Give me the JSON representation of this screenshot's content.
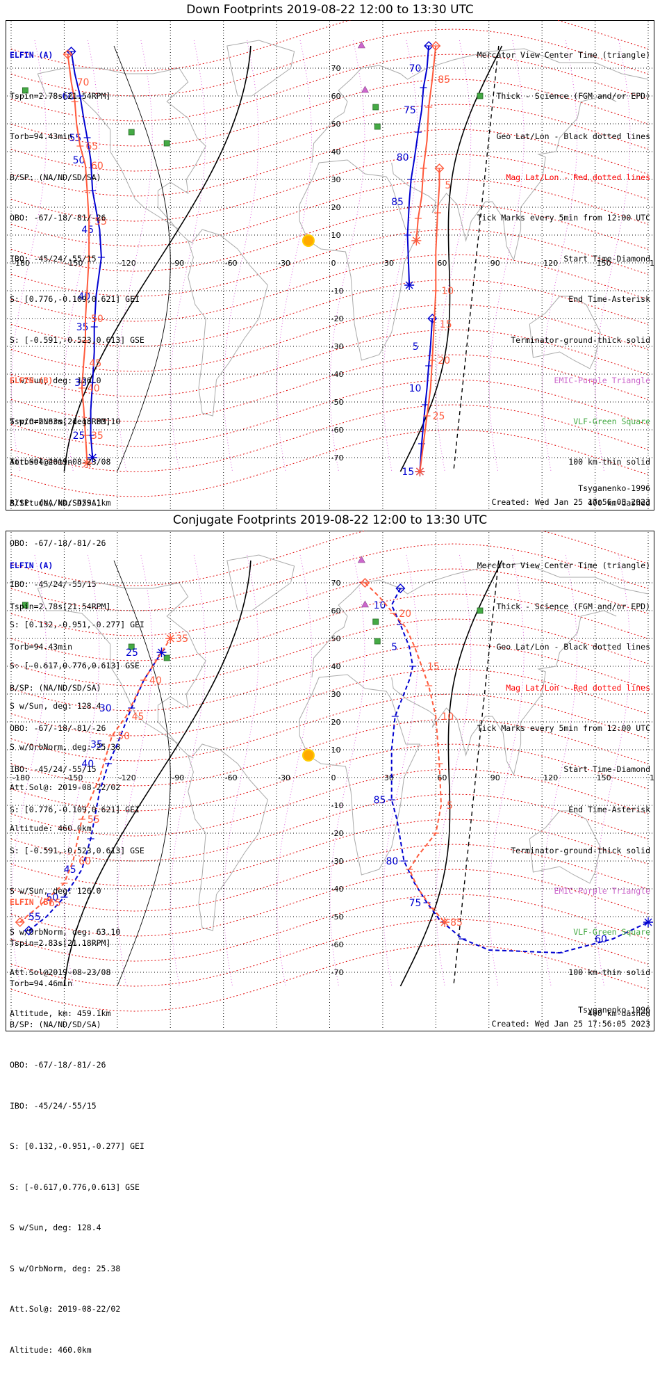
{
  "down": {
    "title": "Down Footprints 2019-08-22 12:00 to 13:30 UTC",
    "info_a": [
      "ELFIN (A)",
      "Tspin=2.78s[21.54RPM]",
      "Torb=94.43min",
      "B/SP: (NA/ND/SD/SA)",
      "OBO: -67/-18/-81/-26",
      "IBO: -45/24/-55/15",
      "S: [0.776,-0.109,0.621] GEI",
      "S: [-0.591,-0.523,0.613] GSE",
      "S w/Sun, deg: 126.0",
      "S w/OrbNorm, deg: 63.10",
      "Att.Sol@2019-08-23/08",
      "Altitude, km: 459.1km"
    ],
    "info_b": [
      "ELFIN (B)",
      "Tspin=2.83s[21.18RPM]",
      "Torb=94.46min",
      "B/SP: (NA/ND/SD/SA)",
      "OBO: -67/-18/-81/-26",
      "IBO: -45/24/-55/15",
      "S: [0.132,-0.951,-0.277] GEI",
      "S: [-0.617,0.776,0.613] GSE",
      "S w/Sun, deg: 128.4",
      "S w/OrbNorm, deg: 25.38",
      "Att.Sol@: 2019-08-22/02",
      "Altitude: 460.0km"
    ],
    "footer_left": "Tsyganenko-1996",
    "footer_right": "Created: Wed Jan 25 17:56:05 2023"
  },
  "conjugate": {
    "title": "Conjugate Footprints 2019-08-22 12:00 to 13:30 UTC",
    "info_a": [
      "ELFIN (A)",
      "Tspin=2.78s[21.54RPM]",
      "Torb=94.43min",
      "B/SP: (NA/ND/SD/SA)",
      "OBO: -67/-18/-81/-26",
      "IBO: -45/24/-55/15",
      "S: [0.776,-0.109,0.621] GEI",
      "S: [-0.591,-0.523,0.613] GSE",
      "S w/Sun, deg: 126.0",
      "S w/OrbNorm, deg: 63.10",
      "Att.Sol@2019-08-23/08",
      "Altitude, km: 459.1km"
    ],
    "info_b": [
      "ELFIN (B)",
      "Tspin=2.83s[21.18RPM]",
      "Torb=94.46min",
      "B/SP: (NA/ND/SD/SA)",
      "OBO: -67/-18/-81/-26",
      "IBO: -45/24/-55/15",
      "S: [0.132,-0.951,-0.277] GEI",
      "S: [-0.617,0.776,0.613] GSE",
      "S w/Sun, deg: 128.4",
      "S w/OrbNorm, deg: 25.38",
      "Att.Sol@: 2019-08-22/02",
      "Altitude: 460.0km"
    ],
    "footer_left": "Tsyganenko-1996",
    "footer_right": "Created: Wed Jan 25 17:56:05 2023"
  },
  "legend": [
    {
      "text": "Mercator View Center Time (triangle)",
      "color": "#000000"
    },
    {
      "text": "Thick - Science (FGM and/or EPD)",
      "color": "#000000"
    },
    {
      "text": "Geo Lat/Lon - Black dotted lines",
      "color": "#000000"
    },
    {
      "text": "Mag Lat/Lon - Red dotted lines",
      "color": "#ff0000"
    },
    {
      "text": "Tick Marks every 5min from 12:00 UTC",
      "color": "#000000"
    },
    {
      "text": "Start Time-Diamond",
      "color": "#000000"
    },
    {
      "text": "End Time-Asterisk",
      "color": "#000000"
    },
    {
      "text": "Terminator-ground-thick solid",
      "color": "#000000"
    },
    {
      "text": "EMIC-Purple Triangle",
      "color": "#cc66cc"
    },
    {
      "text": "VLF-Green Square",
      "color": "#44aa44"
    },
    {
      "text": "100 km-thin solid",
      "color": "#000000"
    },
    {
      "text": "400 km-dashed",
      "color": "#000000"
    }
  ],
  "colors": {
    "elfin_a": "#0000d0",
    "elfin_b": "#ff5a3c",
    "mag_grid": "#e00000",
    "geo_grid": "#000000",
    "coast": "#aaaaaa",
    "emic": "#cc66cc",
    "vlf": "#44aa44",
    "sun": "#ffaa00"
  },
  "map": {
    "lon_ticks": [
      "-180",
      "-150",
      "-120",
      "-90",
      "-60",
      "-30",
      "0",
      "30",
      "60",
      "90",
      "120",
      "150",
      "180"
    ],
    "lat_ticks": [
      "70",
      "60",
      "50",
      "40",
      "30",
      "20",
      "10",
      "0",
      "-10",
      "-20",
      "-30",
      "-40",
      "-50",
      "-60",
      "-70"
    ]
  },
  "chart_data": [
    {
      "type": "scatter",
      "title": "Down Footprints 2019-08-22 12:00 to 13:30 UTC",
      "xlim": [
        -180,
        180
      ],
      "ylim": [
        -75,
        80
      ],
      "series": [
        {
          "name": "ELFIN (A)",
          "track": [
            [
              -146,
              76
            ],
            [
              -144,
              68
            ],
            [
              -141,
              60
            ],
            [
              -139,
              52
            ],
            [
              -137,
              45
            ],
            [
              -135,
              37
            ],
            [
              -134,
              26
            ],
            [
              -130,
              12
            ],
            [
              -129,
              2
            ],
            [
              -132,
              -12
            ],
            [
              -133,
              -23
            ],
            [
              -133,
              -32
            ],
            [
              -134,
              -43
            ],
            [
              -135,
              -53
            ],
            [
              -135,
              -62
            ],
            [
              -134,
              -70
            ]
          ],
          "labels": [
            {
              "t": "60",
              "lon": -141,
              "lat": 60
            },
            {
              "t": "55",
              "lon": -137,
              "lat": 45
            },
            {
              "t": "50",
              "lon": -135,
              "lat": 37
            },
            {
              "t": "45",
              "lon": -130,
              "lat": 12
            },
            {
              "t": "40",
              "lon": -132,
              "lat": -12
            },
            {
              "t": "35",
              "lon": -133,
              "lat": -23
            },
            {
              "t": "30",
              "lon": -134,
              "lat": -43
            },
            {
              "t": "25",
              "lon": -135,
              "lat": -62
            }
          ]
        },
        {
          "name": "ELFIN (A) pass 2",
          "track": [
            [
              56,
              78
            ],
            [
              55,
              70
            ],
            [
              53,
              63
            ],
            [
              52,
              55
            ],
            [
              50,
              47
            ],
            [
              48,
              38
            ],
            [
              46,
              30
            ],
            [
              45,
              22
            ],
            [
              44,
              10
            ],
            [
              45,
              -8
            ]
          ],
          "labels": [
            {
              "t": "70",
              "lon": 55,
              "lat": 70
            },
            {
              "t": "75",
              "lon": 52,
              "lat": 55
            },
            {
              "t": "80",
              "lon": 48,
              "lat": 38
            },
            {
              "t": "85",
              "lon": 45,
              "lat": 22
            }
          ]
        },
        {
          "name": "ELFIN (A) pass 3",
          "track": [
            [
              58,
              -20
            ],
            [
              57,
              -30
            ],
            [
              56,
              -37
            ],
            [
              55,
              -45
            ],
            [
              54,
              -51
            ],
            [
              53,
              -58
            ],
            [
              52,
              -65
            ],
            [
              51,
              -75
            ]
          ],
          "labels": [
            {
              "t": "5",
              "lon": 57,
              "lat": -30
            },
            {
              "t": "10",
              "lon": 55,
              "lat": -45
            },
            {
              "t": "15",
              "lon": 51,
              "lat": -75
            }
          ]
        },
        {
          "name": "ELFIN (B)",
          "track": [
            [
              -148,
              75
            ],
            [
              -146,
              65
            ],
            [
              -144,
              58
            ],
            [
              -143,
              50
            ],
            [
              -141,
              42
            ],
            [
              -138,
              35
            ],
            [
              -137,
              26
            ],
            [
              -136,
              15
            ],
            [
              -136,
              2
            ],
            [
              -138,
              -20
            ],
            [
              -138,
              -28
            ],
            [
              -139,
              -36
            ],
            [
              -140,
              -45
            ],
            [
              -139,
              -52
            ],
            [
              -138,
              -62
            ],
            [
              -137,
              -72
            ]
          ],
          "labels": [
            {
              "t": "70",
              "lon": -146,
              "lat": 65
            },
            {
              "t": "65",
              "lon": -141,
              "lat": 42
            },
            {
              "t": "60",
              "lon": -138,
              "lat": 35
            },
            {
              "t": "55",
              "lon": -136,
              "lat": 15
            },
            {
              "t": "50",
              "lon": -138,
              "lat": -20
            },
            {
              "t": "45",
              "lon": -139,
              "lat": -36
            },
            {
              "t": "40",
              "lon": -140,
              "lat": -45
            },
            {
              "t": "35",
              "lon": -138,
              "lat": -62
            }
          ]
        },
        {
          "name": "ELFIN (B) pass 2",
          "track": [
            [
              60,
              78
            ],
            [
              58,
              66
            ],
            [
              56,
              56
            ],
            [
              55,
              44
            ],
            [
              53,
              34
            ],
            [
              52,
              24
            ],
            [
              50,
              16
            ],
            [
              49,
              8
            ]
          ],
          "labels": [
            {
              "t": "85",
              "lon": 58,
              "lat": 66
            }
          ]
        },
        {
          "name": "ELFIN (B) pass 3",
          "track": [
            [
              62,
              34
            ],
            [
              62,
              28
            ],
            [
              61,
              18
            ],
            [
              60,
              4
            ],
            [
              60,
              -10
            ],
            [
              59,
              -22
            ],
            [
              58,
              -35
            ],
            [
              57,
              -45
            ],
            [
              55,
              -55
            ],
            [
              53,
              -65
            ],
            [
              51,
              -75
            ]
          ],
          "labels": [
            {
              "t": "5",
              "lon": 62,
              "lat": 28
            },
            {
              "t": "10",
              "lon": 60,
              "lat": -10
            },
            {
              "t": "15",
              "lon": 59,
              "lat": -22
            },
            {
              "t": "20",
              "lon": 58,
              "lat": -35
            },
            {
              "t": "25",
              "lon": 55,
              "lat": -55
            }
          ]
        }
      ]
    },
    {
      "type": "scatter",
      "title": "Conjugate Footprints 2019-08-22 12:00 to 13:30 UTC",
      "xlim": [
        -180,
        180
      ],
      "ylim": [
        -75,
        80
      ],
      "series": [
        {
          "name": "ELFIN (A)",
          "track": [
            [
              -170,
              -55
            ],
            [
              -160,
              -50
            ],
            [
              -150,
              -43
            ],
            [
              -140,
              -33
            ],
            [
              -135,
              -22
            ],
            [
              -130,
              -5
            ],
            [
              -125,
              5
            ],
            [
              -120,
              12
            ],
            [
              -112,
              25
            ],
            [
              -105,
              35
            ],
            [
              -95,
              45
            ]
          ],
          "labels": [
            {
              "t": "25",
              "lon": -105,
              "lat": 45
            },
            {
              "t": "30",
              "lon": -120,
              "lat": 25
            },
            {
              "t": "35",
              "lon": -125,
              "lat": 12
            },
            {
              "t": "40",
              "lon": -130,
              "lat": 5
            },
            {
              "t": "45",
              "lon": -140,
              "lat": -33
            },
            {
              "t": "50",
              "lon": -150,
              "lat": -43
            },
            {
              "t": "55",
              "lon": -160,
              "lat": -50
            }
          ]
        },
        {
          "name": "ELFIN (A) pass 2",
          "track": [
            [
              40,
              68
            ],
            [
              35,
              62
            ],
            [
              40,
              55
            ],
            [
              45,
              47
            ],
            [
              47,
              40
            ],
            [
              45,
              35
            ],
            [
              37,
              22
            ],
            [
              35,
              10
            ],
            [
              35,
              -8
            ],
            [
              38,
              -15
            ],
            [
              42,
              -30
            ],
            [
              48,
              -38
            ],
            [
              55,
              -45
            ],
            [
              62,
              -51
            ],
            [
              75,
              -58
            ],
            [
              90,
              -62
            ],
            [
              130,
              -63
            ],
            [
              160,
              -58
            ],
            [
              180,
              -52
            ]
          ],
          "labels": [
            {
              "t": "10",
              "lon": 35,
              "lat": 62
            },
            {
              "t": "5",
              "lon": 45,
              "lat": 47
            },
            {
              "t": "85",
              "lon": 35,
              "lat": -8
            },
            {
              "t": "80",
              "lon": 42,
              "lat": -30
            },
            {
              "t": "75",
              "lon": 55,
              "lat": -45
            },
            {
              "t": "60",
              "lon": 160,
              "lat": -58
            }
          ]
        },
        {
          "name": "ELFIN (B)",
          "track": [
            [
              -175,
              -52
            ],
            [
              -162,
              -45
            ],
            [
              -150,
              -38
            ],
            [
              -145,
              -30
            ],
            [
              -140,
              -15
            ],
            [
              -130,
              0
            ],
            [
              -123,
              15
            ],
            [
              -115,
              22
            ],
            [
              -105,
              35
            ],
            [
              -98,
              42
            ],
            [
              -90,
              50
            ]
          ],
          "labels": [
            {
              "t": "35",
              "lon": -90,
              "lat": 50
            },
            {
              "t": "40",
              "lon": -105,
              "lat": 35
            },
            {
              "t": "45",
              "lon": -115,
              "lat": 22
            },
            {
              "t": "50",
              "lon": -123,
              "lat": 15
            },
            {
              "t": "55",
              "lon": -140,
              "lat": -15
            },
            {
              "t": "60",
              "lon": -145,
              "lat": -30
            },
            {
              "t": "65",
              "lon": -162,
              "lat": -45
            }
          ]
        },
        {
          "name": "ELFIN (B) pass 2",
          "track": [
            [
              20,
              70
            ],
            [
              28,
              65
            ],
            [
              36,
              59
            ],
            [
              43,
              54
            ],
            [
              48,
              47
            ],
            [
              52,
              40
            ],
            [
              56,
              33
            ],
            [
              60,
              22
            ],
            [
              62,
              5
            ],
            [
              63,
              -10
            ],
            [
              60,
              -20
            ],
            [
              50,
              -28
            ],
            [
              45,
              -33
            ],
            [
              50,
              -40
            ],
            [
              58,
              -47
            ],
            [
              65,
              -52
            ]
          ],
          "labels": [
            {
              "t": "20",
              "lon": 36,
              "lat": 59
            },
            {
              "t": "15",
              "lon": 52,
              "lat": 40
            },
            {
              "t": "10",
              "lon": 60,
              "lat": 22
            },
            {
              "t": "5",
              "lon": 63,
              "lat": -10
            },
            {
              "t": "85",
              "lon": 65,
              "lat": -52
            }
          ]
        }
      ]
    }
  ]
}
